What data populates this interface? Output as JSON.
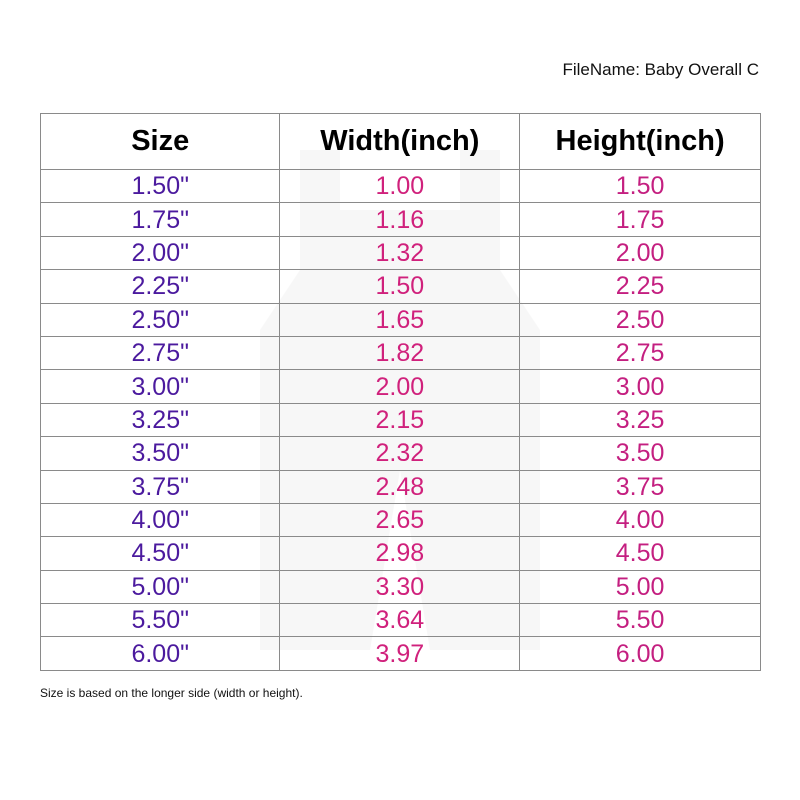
{
  "filename": "FileName: Baby Overall C",
  "headers": [
    "Size",
    "Width(inch)",
    "Height(inch)"
  ],
  "rows": [
    [
      "1.50\"",
      "1.00",
      "1.50"
    ],
    [
      "1.75\"",
      "1.16",
      "1.75"
    ],
    [
      "2.00\"",
      "1.32",
      "2.00"
    ],
    [
      "2.25\"",
      "1.50",
      "2.25"
    ],
    [
      "2.50\"",
      "1.65",
      "2.50"
    ],
    [
      "2.75\"",
      "1.82",
      "2.75"
    ],
    [
      "3.00\"",
      "2.00",
      "3.00"
    ],
    [
      "3.25\"",
      "2.15",
      "3.25"
    ],
    [
      "3.50\"",
      "2.32",
      "3.50"
    ],
    [
      "3.75\"",
      "2.48",
      "3.75"
    ],
    [
      "4.00\"",
      "2.65",
      "4.00"
    ],
    [
      "4.50\"",
      "2.98",
      "4.50"
    ],
    [
      "5.00\"",
      "3.30",
      "5.00"
    ],
    [
      "5.50\"",
      "3.64",
      "5.50"
    ],
    [
      "6.00\"",
      "3.97",
      "6.00"
    ]
  ],
  "note": "Size is based on the longer side (width or height).",
  "colors": {
    "size": "#4b1a9e",
    "width": "#d0217c",
    "height": "#c41f80"
  }
}
